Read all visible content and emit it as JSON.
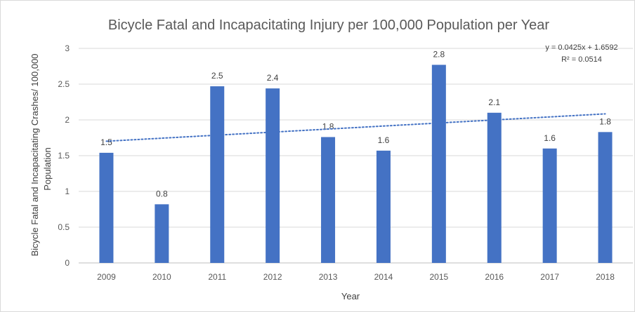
{
  "chart_data": {
    "type": "bar",
    "title": "Bicycle Fatal and Incapacitating Injury per 100,000 Population per Year",
    "xlabel": "Year",
    "ylabel_line1": "Bicycle Fatal and Incapacitating Crashes/ 100,000",
    "ylabel_line2": "Population",
    "categories": [
      "2009",
      "2010",
      "2011",
      "2012",
      "2013",
      "2014",
      "2015",
      "2016",
      "2017",
      "2018"
    ],
    "values": [
      1.54,
      0.82,
      2.47,
      2.44,
      1.76,
      1.57,
      2.77,
      2.1,
      1.6,
      1.83
    ],
    "data_labels": [
      "1.5",
      "0.8",
      "2.5",
      "2.4",
      "1.8",
      "1.6",
      "2.8",
      "2.1",
      "1.6",
      "1.8"
    ],
    "ylim": [
      0,
      3
    ],
    "yticks": [
      "0",
      "0.5",
      "1",
      "1.5",
      "2",
      "2.5",
      "3"
    ],
    "grid": true,
    "bar_color": "#4472c4",
    "trendline": {
      "type": "linear",
      "slope": 0.0425,
      "intercept": 1.6592,
      "equation": "y = 0.0425x + 1.6592",
      "r_squared": "R² = 0.0514",
      "color": "#4472c4",
      "style": "dotted"
    }
  }
}
